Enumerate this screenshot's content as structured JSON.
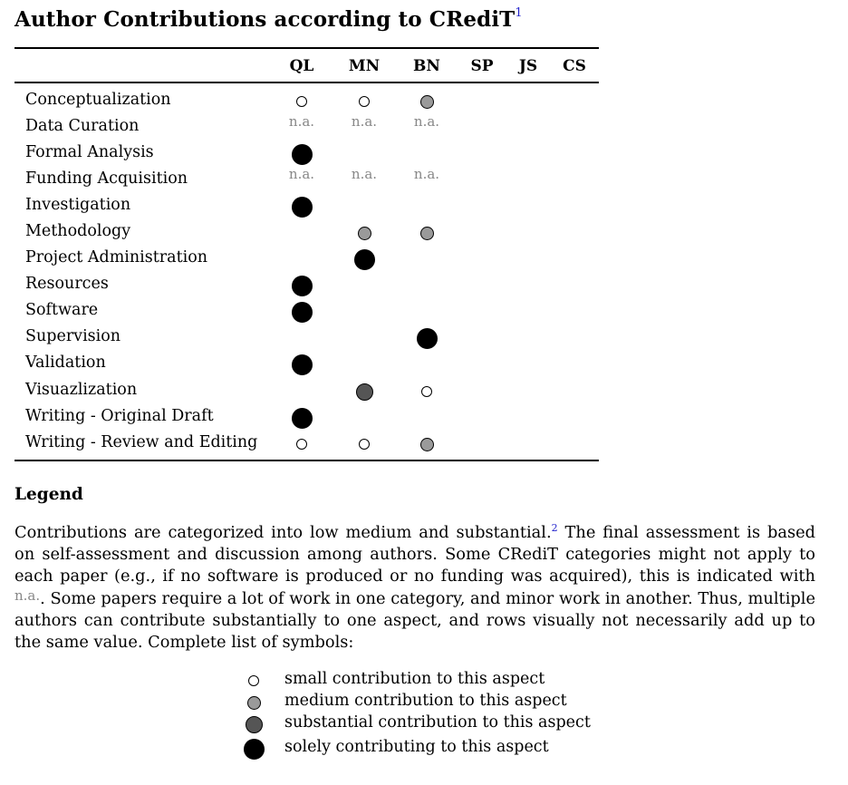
{
  "title": "Author Contributions according to CRediT",
  "title_footnote": "1",
  "authors": [
    "QL",
    "MN",
    "BN",
    "SP",
    "JS",
    "CS"
  ],
  "rows": [
    {
      "label": "Conceptualization",
      "cells": [
        "small",
        "small",
        "medium",
        "",
        "",
        ""
      ]
    },
    {
      "label": "Data Curation",
      "cells": [
        "n.a.",
        "n.a.",
        "n.a.",
        "",
        "",
        ""
      ]
    },
    {
      "label": "Formal Analysis",
      "cells": [
        "solely",
        "",
        "",
        "",
        "",
        ""
      ]
    },
    {
      "label": "Funding Acquisition",
      "cells": [
        "n.a.",
        "n.a.",
        "n.a.",
        "",
        "",
        ""
      ]
    },
    {
      "label": "Investigation",
      "cells": [
        "solely",
        "",
        "",
        "",
        "",
        ""
      ]
    },
    {
      "label": "Methodology",
      "cells": [
        "",
        "medium",
        "medium",
        "",
        "",
        ""
      ]
    },
    {
      "label": "Project Administration",
      "cells": [
        "",
        "solely",
        "",
        "",
        "",
        ""
      ]
    },
    {
      "label": "Resources",
      "cells": [
        "solely",
        "",
        "",
        "",
        "",
        ""
      ]
    },
    {
      "label": "Software",
      "cells": [
        "solely",
        "",
        "",
        "",
        "",
        ""
      ]
    },
    {
      "label": "Supervision",
      "cells": [
        "",
        "",
        "solely",
        "",
        "",
        ""
      ]
    },
    {
      "label": "Validation",
      "cells": [
        "solely",
        "",
        "",
        "",
        "",
        ""
      ]
    },
    {
      "label": "Visuazlization",
      "cells": [
        "",
        "substantial",
        "small",
        "",
        "",
        ""
      ]
    },
    {
      "label": "Writing - Original Draft",
      "cells": [
        "solely",
        "",
        "",
        "",
        "",
        ""
      ]
    },
    {
      "label": "Writing - Review and Editing",
      "cells": [
        "small",
        "small",
        "medium",
        "",
        "",
        ""
      ]
    }
  ],
  "legend": {
    "title": "Legend",
    "text_part1": "Contributions are categorized into low medium and substantial.",
    "footnote": "2",
    "text_part2": " The final assessment is based on self-assessment and discussion among authors. Some CRediT categories might not apply to each paper (e.g., if no software is produced or no funding was acquired), this is indicated with ",
    "na_marker": "n.a.",
    "text_part3": ". Some papers require a lot of work in one category, and minor work in another. Thus, multiple authors can contribute substantially to one aspect, and rows visually not necessarily add up to the same value. Complete list of symbols:",
    "symbols": [
      {
        "level": "small",
        "label": "small contribution to this aspect"
      },
      {
        "level": "medium",
        "label": "medium contribution to this aspect"
      },
      {
        "level": "substantial",
        "label": "substantial contribution to this aspect"
      },
      {
        "level": "solely",
        "label": "solely contributing to this aspect"
      }
    ]
  },
  "colors": {
    "small": "#ffffff",
    "medium": "#9a9a9a",
    "substantial": "#555555",
    "solely": "#000000",
    "na_text": "#888888",
    "footnote_link": "#2222cc"
  }
}
